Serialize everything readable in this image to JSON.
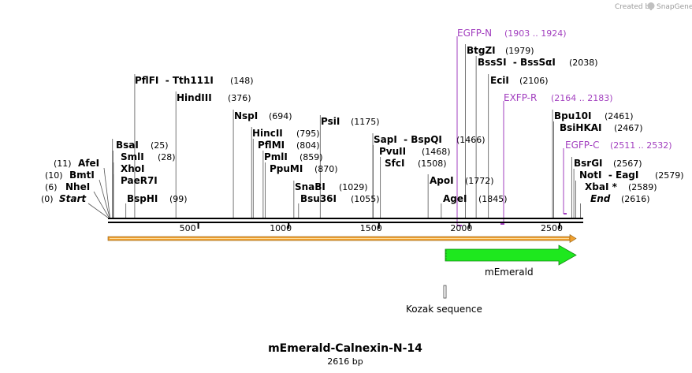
{
  "title": "mEmerald-Calnexin-N-14",
  "length_label": "2616 bp",
  "credit": {
    "prefix": "Created by",
    "brand": "SnapGene"
  },
  "sequence_length": 2616,
  "ticks": [
    500,
    1000,
    1500,
    2000,
    2500
  ],
  "colors": {
    "primer": "#a23fbf",
    "feature_green": "#1ee81e",
    "orf_orange": "#f0a030"
  },
  "sites": [
    {
      "id": "start",
      "label": "Start",
      "italic": true,
      "pos_label": "(0)",
      "bp": 0
    },
    {
      "id": "nhei",
      "label": "NheI",
      "pos_label": "(6)",
      "bp": 6
    },
    {
      "id": "bmti",
      "label": "BmtI",
      "pos_label": "(10)",
      "bp": 10
    },
    {
      "id": "afei",
      "label": "AfeI",
      "pos_label": "(11)",
      "bp": 11
    },
    {
      "id": "bsai",
      "label": "BsaI",
      "pos_label": "(25)",
      "bp": 25
    },
    {
      "id": "smli",
      "label": "SmlI",
      "pos_label": "(28)",
      "bp": 28
    },
    {
      "id": "xhoi",
      "label": "XhoI",
      "pos_label": "",
      "bp": 30
    },
    {
      "id": "paer7i",
      "label": "PaeR7I",
      "pos_label": "",
      "bp": 30
    },
    {
      "id": "bsphi",
      "label": "BspHI",
      "pos_label": "(99)",
      "bp": 99
    },
    {
      "id": "pflfi",
      "label": "PflFI  - Tth111I",
      "pos_label": "(148)",
      "bp": 148
    },
    {
      "id": "hindiii",
      "label": "HindIII",
      "pos_label": "(376)",
      "bp": 376
    },
    {
      "id": "nspi",
      "label": "NspI",
      "pos_label": "(694)",
      "bp": 694
    },
    {
      "id": "hincii",
      "label": "HincII",
      "pos_label": "(795)",
      "bp": 795
    },
    {
      "id": "pflmi",
      "label": "PflMI",
      "pos_label": "(804)",
      "bp": 804
    },
    {
      "id": "pmli",
      "label": "PmlI",
      "pos_label": "(859)",
      "bp": 859
    },
    {
      "id": "ppumi",
      "label": "PpuMI",
      "pos_label": "(870)",
      "bp": 870
    },
    {
      "id": "snabi",
      "label": "SnaBI",
      "pos_label": "(1029)",
      "bp": 1029
    },
    {
      "id": "bsu36i",
      "label": "Bsu36I",
      "pos_label": "(1055)",
      "bp": 1055
    },
    {
      "id": "psii",
      "label": "PsiI",
      "pos_label": "(1175)",
      "bp": 1175
    },
    {
      "id": "sapi",
      "label": "SapI  - BspQI",
      "pos_label": "(1466)",
      "bp": 1466
    },
    {
      "id": "pvuii",
      "label": "PvuII",
      "pos_label": "(1468)",
      "bp": 1468
    },
    {
      "id": "sfci",
      "label": "SfcI",
      "pos_label": "(1508)",
      "bp": 1508
    },
    {
      "id": "apoi",
      "label": "ApoI",
      "pos_label": "(1772)",
      "bp": 1772
    },
    {
      "id": "agei",
      "label": "AgeI",
      "pos_label": "(1845)",
      "bp": 1845
    },
    {
      "id": "btgzi",
      "label": "BtgZI",
      "pos_label": "(1979)",
      "bp": 1979
    },
    {
      "id": "bsssi",
      "label": "BssSI  - BssSαI",
      "pos_label": "(2038)",
      "bp": 2038
    },
    {
      "id": "ecii",
      "label": "EciI",
      "pos_label": "(2106)",
      "bp": 2106
    },
    {
      "id": "bpu10i",
      "label": "Bpu10I",
      "pos_label": "(2461)",
      "bp": 2461
    },
    {
      "id": "bsihkai",
      "label": "BsiHKAI",
      "pos_label": "(2467)",
      "bp": 2467
    },
    {
      "id": "bsrgi",
      "label": "BsrGI",
      "pos_label": "(2567)",
      "bp": 2567
    },
    {
      "id": "noti",
      "label": "NotI  - EagI",
      "pos_label": "(2579)",
      "bp": 2579
    },
    {
      "id": "xbai",
      "label": "XbaI *",
      "pos_label": "(2589)",
      "bp": 2589
    },
    {
      "id": "end",
      "label": "End",
      "italic": true,
      "pos_label": "(2616)",
      "bp": 2616
    }
  ],
  "primers": [
    {
      "id": "egfp-n",
      "label": "EGFP-N",
      "pos_label": "(1903 .. 1924)",
      "start": 1903,
      "end": 1924
    },
    {
      "id": "exfp-r",
      "label": "EXFP-R",
      "pos_label": "(2164 .. 2183)",
      "start": 2164,
      "end": 2183
    },
    {
      "id": "egfp-c",
      "label": "EGFP-C",
      "pos_label": "(2511 .. 2532)",
      "start": 2511,
      "end": 2532
    }
  ],
  "features": [
    {
      "id": "orf",
      "label": "",
      "start": 1,
      "end": 2616
    },
    {
      "id": "memerald",
      "label": "mEmerald",
      "start": 1860,
      "end": 2580
    },
    {
      "id": "kozak",
      "label": "Kozak sequence",
      "start": 1852,
      "end": 1861
    }
  ]
}
